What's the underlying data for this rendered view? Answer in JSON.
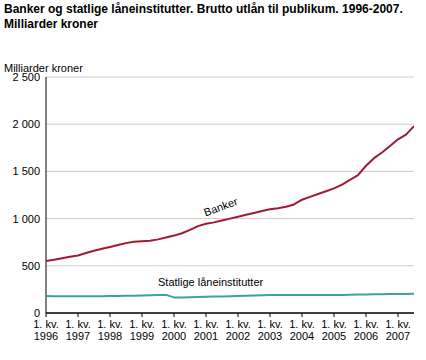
{
  "chart_data": {
    "type": "line",
    "title": "Banker og statlige låneinstitutter. Brutto utlån til publikum. 1996-2007. Milliarder kroner",
    "y_label": "Milliarder kroner",
    "categories": [
      "1. kv. 1996",
      null,
      null,
      null,
      "1. kv. 1997",
      null,
      null,
      null,
      "1. kv. 1998",
      null,
      null,
      null,
      "1. kv. 1999",
      null,
      null,
      null,
      "1. kv. 2000",
      null,
      null,
      null,
      "1. kv. 2001",
      null,
      null,
      null,
      "1. kv. 2002",
      null,
      null,
      null,
      "1. kv. 2003",
      null,
      null,
      null,
      "1. kv. 2004",
      null,
      null,
      null,
      "1. kv. 2005",
      null,
      null,
      null,
      "1. kv. 2006",
      null,
      null,
      null,
      "1. kv. 2007",
      null,
      null
    ],
    "series": [
      {
        "name": "Banker",
        "color": "#9e1b32",
        "values": [
          550,
          565,
          580,
          595,
          610,
          635,
          660,
          680,
          700,
          720,
          740,
          755,
          760,
          765,
          780,
          800,
          820,
          845,
          880,
          920,
          945,
          960,
          980,
          1000,
          1020,
          1040,
          1060,
          1080,
          1100,
          1110,
          1125,
          1150,
          1200,
          1230,
          1260,
          1290,
          1320,
          1360,
          1410,
          1460,
          1560,
          1640,
          1700,
          1770,
          1840,
          1890,
          1980
        ]
      },
      {
        "name": "Statlige låneinstitutter",
        "color": "#3aa59a",
        "values": [
          180,
          178,
          178,
          178,
          178,
          178,
          178,
          178,
          180,
          180,
          182,
          183,
          185,
          188,
          190,
          192,
          165,
          165,
          168,
          170,
          172,
          174,
          176,
          178,
          180,
          183,
          185,
          188,
          190,
          190,
          190,
          190,
          190,
          190,
          190,
          190,
          192,
          192,
          194,
          195,
          196,
          198,
          198,
          200,
          200,
          202,
          205
        ]
      }
    ],
    "ylim": [
      0,
      2500
    ],
    "yticks": [
      0,
      500,
      {
        "value": 1000,
        "label": "1 000"
      },
      {
        "value": 1500,
        "label": "1 500"
      },
      {
        "value": 2000,
        "label": "2 000"
      },
      {
        "value": 2500,
        "label": "2 500"
      }
    ],
    "grid": true
  }
}
